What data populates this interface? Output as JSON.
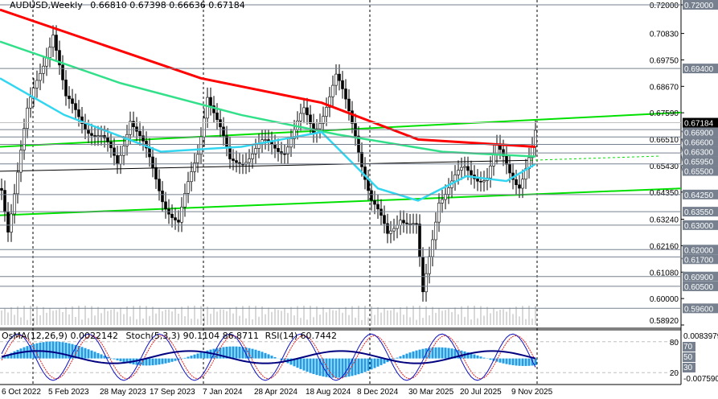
{
  "header": {
    "symbol_timeframe": "AUDUSD,Weekly",
    "ohlc": "0.66810 0.67398 0.66636 0.67184"
  },
  "indicator_header": {
    "osma": "OsMA(12,26,9) 0.0022142",
    "stoch": "Stoch(5,3,3) 90.1104 86.8711",
    "rsi": "RSI(14) 60.7442"
  },
  "colors": {
    "ma_long": "#ff0000",
    "ma_mid": "#33e08a",
    "ma_short": "#33d6f0",
    "trendline": "#00e000",
    "level_label_bg": "#76808e",
    "current_price_bg": "#000000",
    "osma_hist": "#1e9ee8",
    "stoch_main": "#1010c0",
    "stoch_signal": "#e02020"
  },
  "chart_data": {
    "type": "candlestick",
    "title": "AUDUSD,Weekly",
    "ylim": [
      0.5892,
      0.72
    ],
    "y_ticks": [
      "0.72000",
      "0.70830",
      "0.69750",
      "0.68670",
      "0.67590",
      "0.66510",
      "0.65430",
      "0.64350",
      "0.63240",
      "0.62160",
      "0.61080",
      "0.60000",
      "0.58920"
    ],
    "current_price": "0.67184",
    "levels": [
      "0.72000",
      "0.69400",
      "0.66900",
      "0.66600",
      "0.66300",
      "0.65950",
      "0.65500",
      "0.64250",
      "0.63550",
      "0.63000",
      "0.62000",
      "0.61700",
      "0.60900",
      "0.60500",
      "0.59600"
    ],
    "x_tick_labels": [
      "6 Oct 2022",
      "5 Feb 2023",
      "28 May 2023",
      "17 Sep 2023",
      "7 Jan 2024",
      "28 Apr 2024",
      "18 Aug 2024",
      "8 Dec 2024",
      "30 Mar 2025",
      "20 Jul 2025",
      "9 Nov 2025"
    ],
    "close": [
      {
        "date": "2022-10-06",
        "v": 0.645
      },
      {
        "date": "2022-10-20",
        "v": 0.63
      },
      {
        "date": "2022-12-01",
        "v": 0.675
      },
      {
        "date": "2023-01-26",
        "v": 0.71
      },
      {
        "date": "2023-02-23",
        "v": 0.68
      },
      {
        "date": "2023-05-11",
        "v": 0.665
      },
      {
        "date": "2023-06-15",
        "v": 0.655
      },
      {
        "date": "2023-07-13",
        "v": 0.675
      },
      {
        "date": "2023-09-21",
        "v": 0.642
      },
      {
        "date": "2023-10-26",
        "v": 0.63
      },
      {
        "date": "2023-12-07",
        "v": 0.66
      },
      {
        "date": "2023-12-28",
        "v": 0.685
      },
      {
        "date": "2024-02-15",
        "v": 0.655
      },
      {
        "date": "2024-04-25",
        "v": 0.662
      },
      {
        "date": "2024-06-13",
        "v": 0.662
      },
      {
        "date": "2024-07-25",
        "v": 0.675
      },
      {
        "date": "2024-08-15",
        "v": 0.668
      },
      {
        "date": "2024-10-03",
        "v": 0.69
      },
      {
        "date": "2024-11-14",
        "v": 0.668
      },
      {
        "date": "2024-12-19",
        "v": 0.64
      },
      {
        "date": "2025-01-23",
        "v": 0.625
      },
      {
        "date": "2025-02-20",
        "v": 0.635
      },
      {
        "date": "2025-03-27",
        "v": 0.628
      },
      {
        "date": "2025-04-10",
        "v": 0.6
      },
      {
        "date": "2025-05-15",
        "v": 0.642
      },
      {
        "date": "2025-07-10",
        "v": 0.652
      },
      {
        "date": "2025-08-28",
        "v": 0.65
      },
      {
        "date": "2025-09-18",
        "v": 0.66
      },
      {
        "date": "2025-10-16",
        "v": 0.652
      },
      {
        "date": "2025-11-06",
        "v": 0.648
      },
      {
        "date": "2025-12-04",
        "v": 0.66
      },
      {
        "date": "2025-12-18",
        "v": 0.6718
      }
    ],
    "moving_averages": [
      {
        "color": "#ff0000",
        "points": [
          [
            0,
            0.718
          ],
          [
            250,
            0.69
          ],
          [
            400,
            0.68
          ],
          [
            520,
            0.665
          ],
          [
            666,
            0.662
          ]
        ]
      },
      {
        "color": "#33e08a",
        "points": [
          [
            0,
            0.705
          ],
          [
            150,
            0.688
          ],
          [
            300,
            0.675
          ],
          [
            420,
            0.667
          ],
          [
            550,
            0.66
          ],
          [
            666,
            0.658
          ]
        ]
      },
      {
        "color": "#33d6f0",
        "points": [
          [
            0,
            0.69
          ],
          [
            80,
            0.675
          ],
          [
            200,
            0.66
          ],
          [
            300,
            0.662
          ],
          [
            400,
            0.668
          ],
          [
            470,
            0.645
          ],
          [
            520,
            0.64
          ],
          [
            580,
            0.65
          ],
          [
            630,
            0.648
          ],
          [
            666,
            0.655
          ]
        ]
      }
    ],
    "indicator": {
      "ylim": [
        -0.00759,
        0.0083979
      ],
      "y_labels": [
        "0.0083979",
        "80",
        "70",
        "50",
        "30",
        "20",
        "-0.007590"
      ]
    }
  }
}
